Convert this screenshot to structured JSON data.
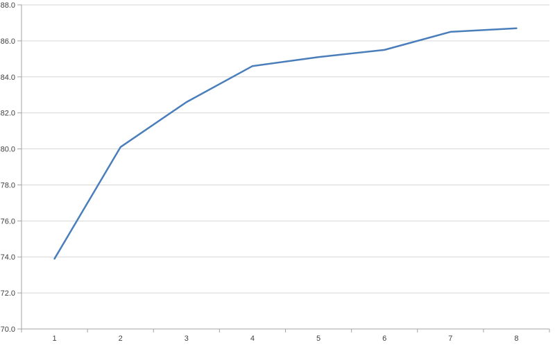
{
  "chart_data": {
    "type": "line",
    "title": "",
    "xlabel": "",
    "ylabel": "",
    "categories": [
      "1",
      "2",
      "3",
      "4",
      "5",
      "6",
      "7",
      "8"
    ],
    "series": [
      {
        "name": "",
        "values": [
          73.9,
          80.1,
          82.6,
          84.6,
          85.1,
          85.5,
          86.5,
          86.7
        ]
      }
    ],
    "ylim": [
      70.0,
      88.0
    ],
    "ytick_step": 2.0,
    "ytick_decimals": 1,
    "grid": true,
    "legend_position": "none",
    "colors": {
      "line": "#4a7ebb",
      "gridline": "#d6d6d6",
      "axis": "#a3a3a3",
      "tick": "#a3a3a3",
      "label": "#3f3f3f",
      "background": "#ffffff"
    }
  }
}
